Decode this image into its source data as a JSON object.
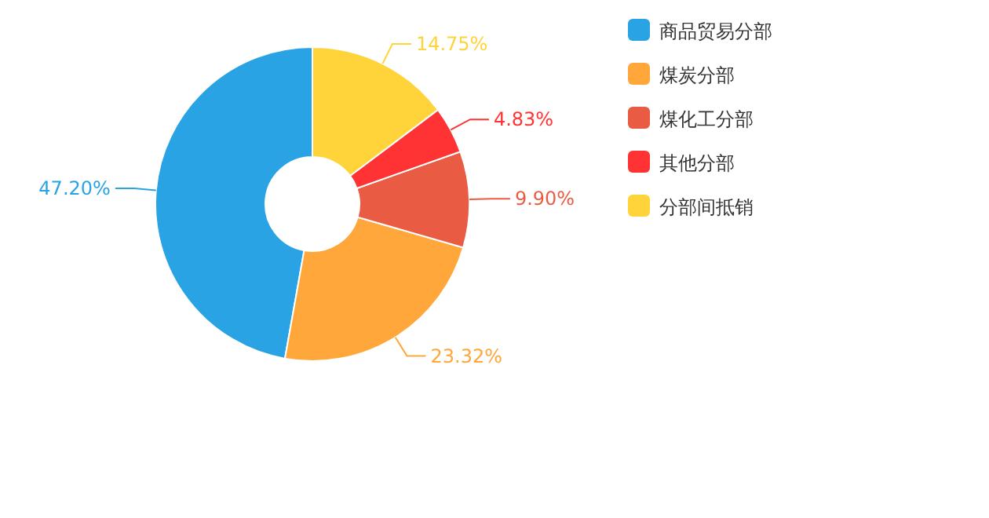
{
  "chart_data": {
    "type": "donut",
    "categories": [
      "商品贸易分部",
      "煤炭分部",
      "煤化工分部",
      "其他分部",
      "分部间抵销"
    ],
    "values": [
      47.2,
      23.32,
      9.9,
      4.83,
      14.75
    ],
    "colors": [
      "#29a3e3",
      "#ffa73a",
      "#e95c43",
      "#ff3333",
      "#ffd43a"
    ],
    "value_labels": [
      "47.20%",
      "23.32%",
      "9.90%",
      "4.83%",
      "14.75%"
    ],
    "legend": "right"
  }
}
